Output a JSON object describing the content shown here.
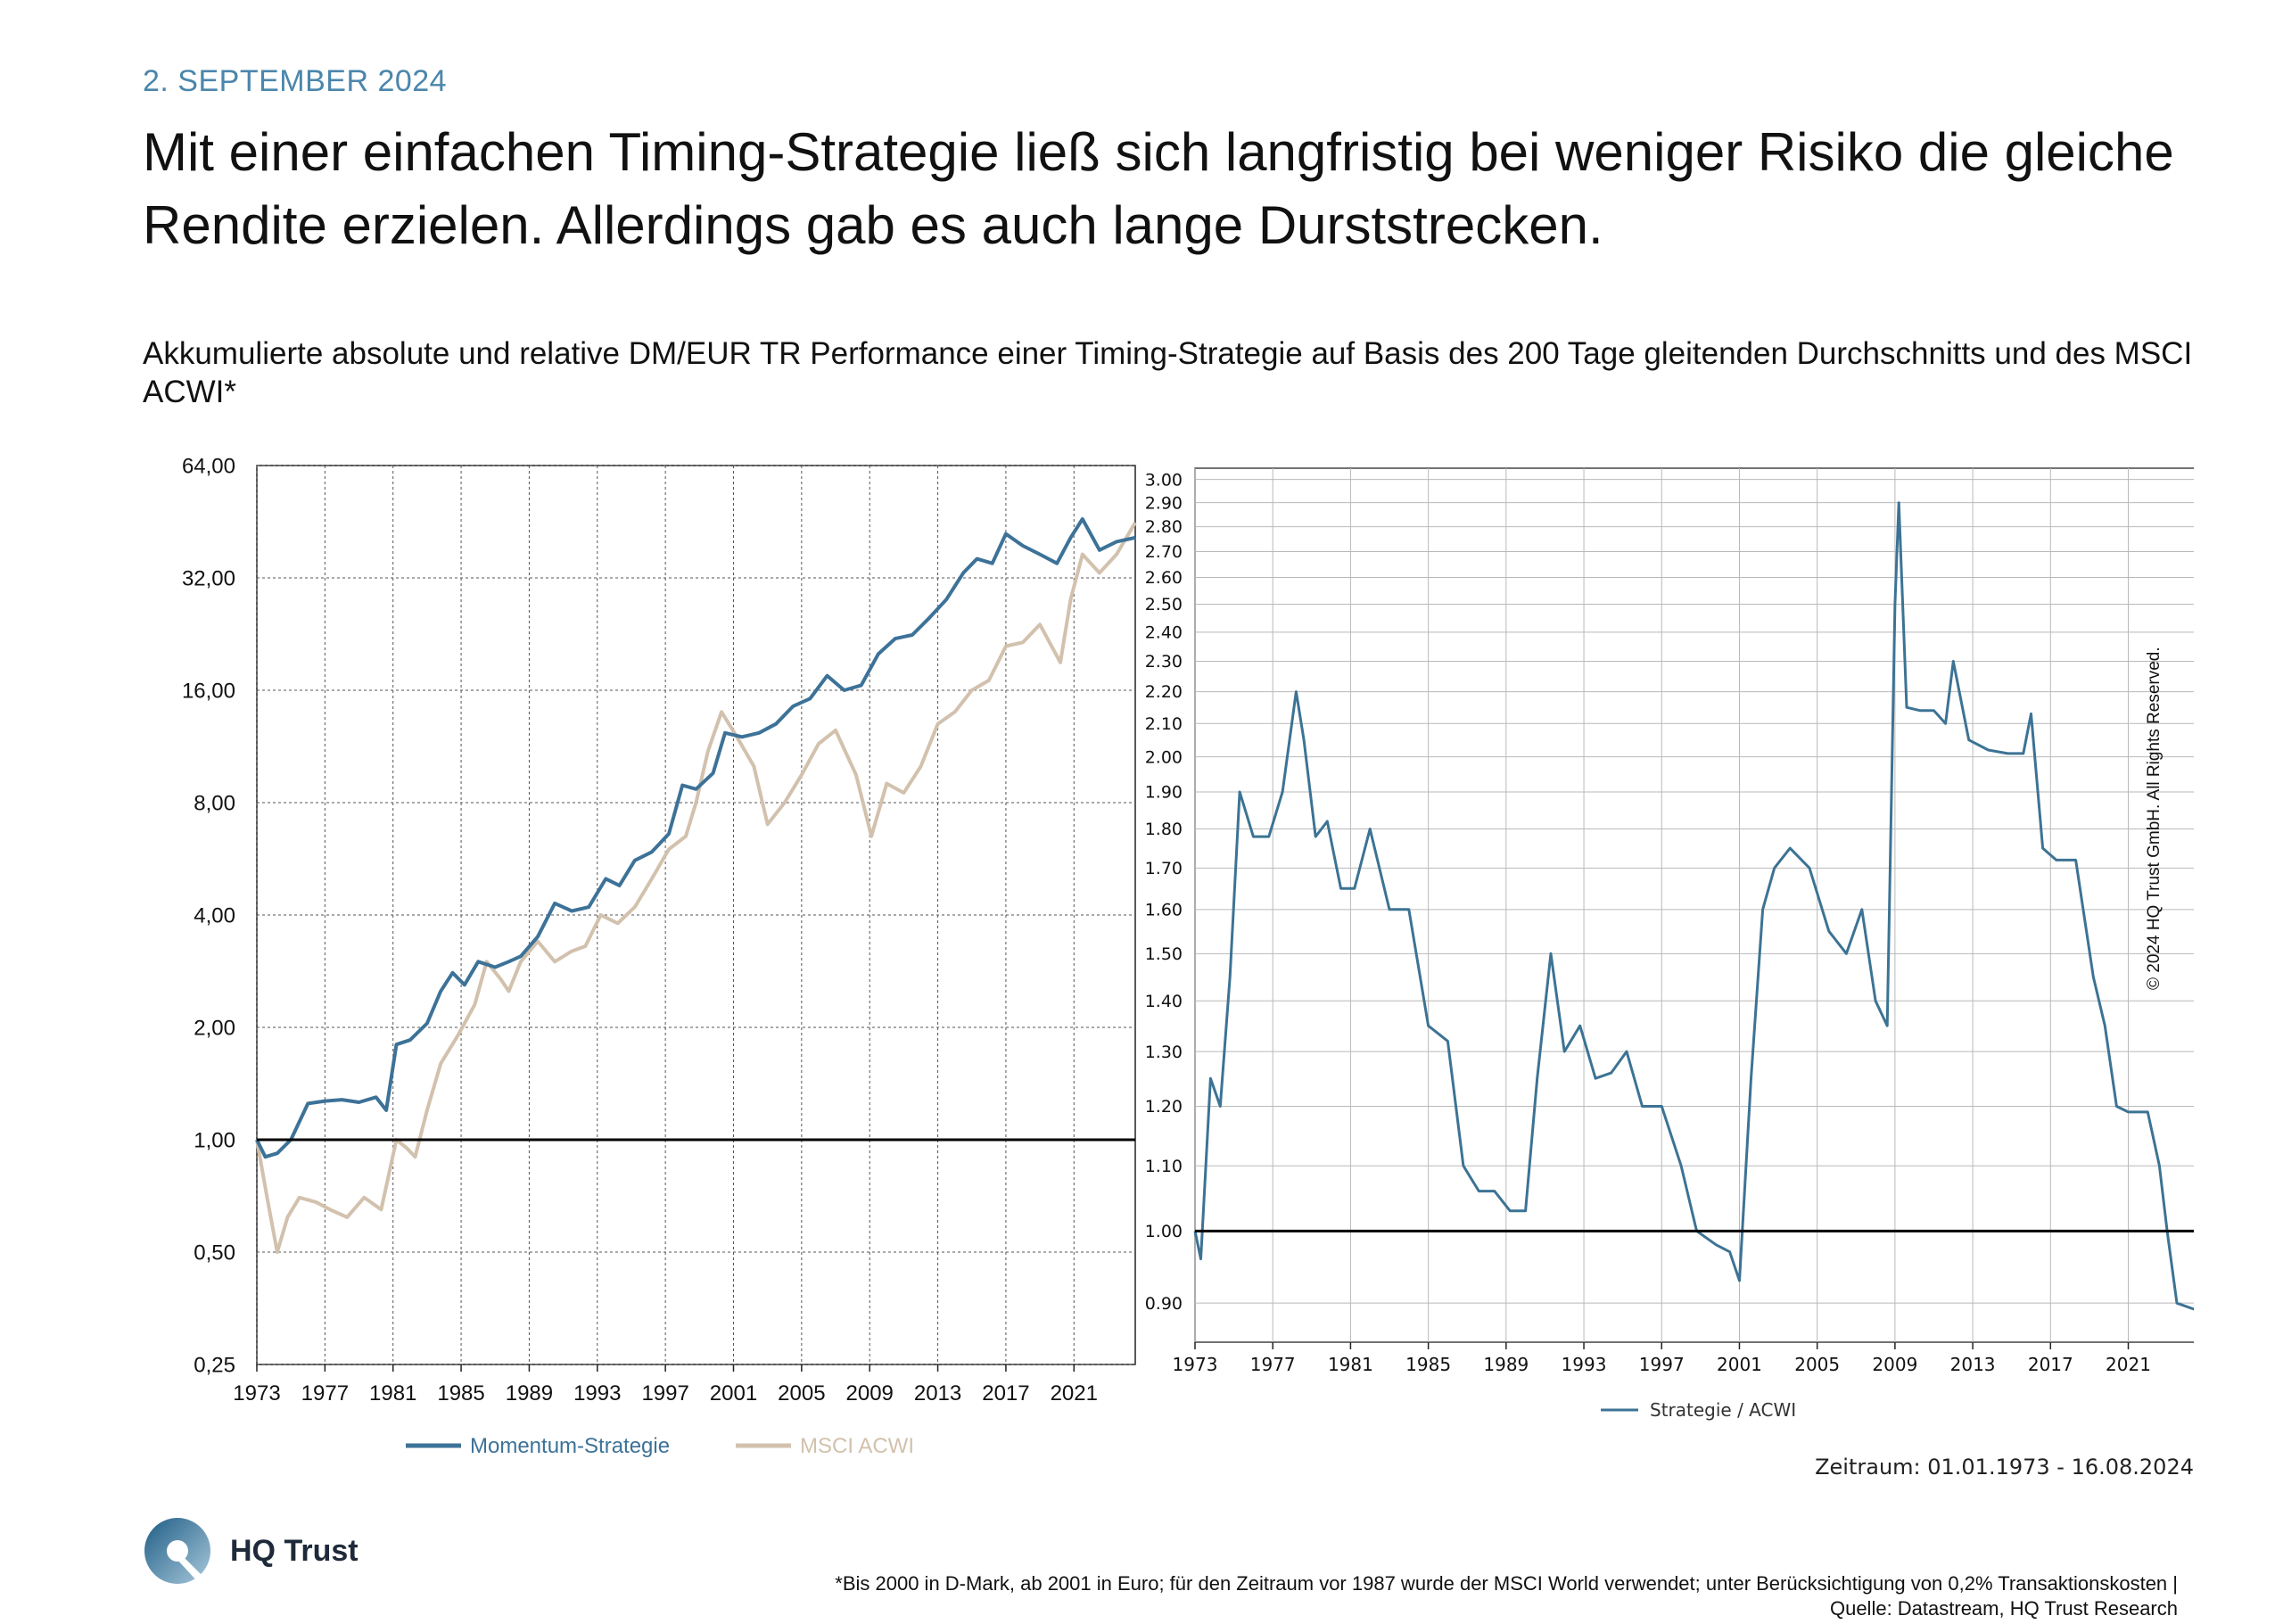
{
  "header": {
    "date": "2. SEPTEMBER 2024",
    "headline": "Mit einer einfachen Timing-Strategie ließ sich langfristig bei weniger Risiko die gleiche Rendite erzielen. Allerdings gab es auch lange Durststrecken.",
    "subtitle": "Akkumulierte absolute und relative DM/EUR TR Performance einer Timing-Strategie auf Basis des 200 Tage gleitenden Durchschnitts und des MSCI ACWI*"
  },
  "colors": {
    "accent": "#4b86ab",
    "strategy": "#3d7298",
    "msci": "#d2c1ad",
    "ratio": "#3c7394",
    "grid": "#7a7a7a",
    "text": "#111111"
  },
  "chart_data": [
    {
      "type": "line",
      "yscale": "log",
      "ylim": [
        0.25,
        64
      ],
      "xlim": [
        1973,
        2024.6
      ],
      "yticks": [
        "0,25",
        "0,50",
        "1,00",
        "2,00",
        "4,00",
        "8,00",
        "16,00",
        "32,00",
        "64,00"
      ],
      "ytick_values": [
        0.25,
        0.5,
        1,
        2,
        4,
        8,
        16,
        32,
        64
      ],
      "xticks": [
        "1973",
        "1977",
        "1981",
        "1985",
        "1989",
        "1993",
        "1997",
        "2001",
        "2005",
        "2009",
        "2013",
        "2017",
        "2021"
      ],
      "xtick_values": [
        1973,
        1977,
        1981,
        1985,
        1989,
        1993,
        1997,
        2001,
        2005,
        2009,
        2013,
        2017,
        2021
      ],
      "reference_line": 1.0,
      "grid": true,
      "legend_position": "bottom",
      "series": [
        {
          "name": "Momentum-Strategie",
          "color": "#3d7298",
          "x": [
            1973,
            1973.5,
            1974.2,
            1975,
            1976,
            1977,
            1978,
            1979,
            1980,
            1980.6,
            1981.2,
            1982,
            1983,
            1983.8,
            1984.5,
            1985.2,
            1986,
            1987,
            1987.8,
            1988.5,
            1989.5,
            1990.5,
            1991.5,
            1992.5,
            1993.5,
            1994.3,
            1995.2,
            1996.2,
            1997.2,
            1998,
            1998.8,
            1999.8,
            2000.5,
            2001.5,
            2002.5,
            2003.5,
            2004.5,
            2005.5,
            2006.5,
            2007.5,
            2008.5,
            2009.5,
            2010.5,
            2011.5,
            2012.5,
            2013.5,
            2014.5,
            2015.3,
            2016.2,
            2017,
            2018,
            2019,
            2020,
            2020.8,
            2021.5,
            2022.5,
            2023.5,
            2024.6
          ],
          "y": [
            1.0,
            0.9,
            0.92,
            1.0,
            1.25,
            1.27,
            1.28,
            1.26,
            1.3,
            1.2,
            1.8,
            1.85,
            2.05,
            2.5,
            2.8,
            2.6,
            3.0,
            2.9,
            3.0,
            3.1,
            3.5,
            4.3,
            4.1,
            4.2,
            5.0,
            4.8,
            5.6,
            5.9,
            6.6,
            8.9,
            8.7,
            9.6,
            12.3,
            12.0,
            12.3,
            13.0,
            14.5,
            15.2,
            17.5,
            16.0,
            16.5,
            20.0,
            22.0,
            22.5,
            25.0,
            28.0,
            33.0,
            36.0,
            35.0,
            42.0,
            39.0,
            37.0,
            35.0,
            41.0,
            46.0,
            38.0,
            40.0,
            41.0
          ]
        },
        {
          "name": "MSCI ACWI",
          "color": "#d2c1ad",
          "x": [
            1973,
            1973.6,
            1974.2,
            1974.8,
            1975.5,
            1976.5,
            1977.3,
            1978.3,
            1979.3,
            1980.3,
            1981.2,
            1981.8,
            1982.3,
            1983,
            1983.8,
            1984.8,
            1985.8,
            1986.5,
            1987.3,
            1987.8,
            1988.5,
            1989.5,
            1990.5,
            1991.5,
            1992.3,
            1993.2,
            1994.2,
            1995.2,
            1996.2,
            1997.2,
            1998.2,
            1998.8,
            1999.5,
            2000.3,
            2001.2,
            2002.2,
            2003,
            2004,
            2005,
            2006,
            2007,
            2008.2,
            2009.1,
            2010,
            2011,
            2012,
            2013,
            2014,
            2015,
            2016,
            2017,
            2018,
            2019,
            2020.2,
            2020.8,
            2021.5,
            2022.5,
            2023.5,
            2024.6
          ],
          "y": [
            1.0,
            0.7,
            0.5,
            0.62,
            0.7,
            0.68,
            0.65,
            0.62,
            0.7,
            0.65,
            1.0,
            0.95,
            0.9,
            1.2,
            1.6,
            1.9,
            2.3,
            3.0,
            2.7,
            2.5,
            3.0,
            3.4,
            3.0,
            3.2,
            3.3,
            4.0,
            3.8,
            4.2,
            5.0,
            6.0,
            6.5,
            8.0,
            11.0,
            14.0,
            12.0,
            10.0,
            7.0,
            8.0,
            9.5,
            11.5,
            12.5,
            9.5,
            6.5,
            9.0,
            8.5,
            10.0,
            13.0,
            14.0,
            16.0,
            17.0,
            21.0,
            21.5,
            24.0,
            19.0,
            28.0,
            37.0,
            33.0,
            37.0,
            45.0
          ]
        }
      ]
    },
    {
      "type": "line",
      "yscale": "log",
      "ylim": [
        0.85,
        3.05
      ],
      "xlim": [
        1973,
        2024.6
      ],
      "yticks": [
        "0.90",
        "1.00",
        "1.10",
        "1.20",
        "1.30",
        "1.40",
        "1.50",
        "1.60",
        "1.70",
        "1.80",
        "1.90",
        "2.00",
        "2.10",
        "2.20",
        "2.30",
        "2.40",
        "2.50",
        "2.60",
        "2.70",
        "2.80",
        "2.90",
        "3.00"
      ],
      "ytick_values": [
        0.9,
        1.0,
        1.1,
        1.2,
        1.3,
        1.4,
        1.5,
        1.6,
        1.7,
        1.8,
        1.9,
        2.0,
        2.1,
        2.2,
        2.3,
        2.4,
        2.5,
        2.6,
        2.7,
        2.8,
        2.9,
        3.0
      ],
      "xticks": [
        "1973",
        "1977",
        "1981",
        "1985",
        "1989",
        "1993",
        "1997",
        "2001",
        "2005",
        "2009",
        "2013",
        "2017",
        "2021"
      ],
      "xtick_values": [
        1973,
        1977,
        1981,
        1985,
        1989,
        1993,
        1997,
        2001,
        2005,
        2009,
        2013,
        2017,
        2021
      ],
      "reference_line": 1.0,
      "grid": true,
      "legend_position": "bottom",
      "period_note": "Zeitraum: 01.01.1973 - 16.08.2024",
      "series": [
        {
          "name": "Strategie / ACWI",
          "color": "#3c7394",
          "x": [
            1973,
            1973.3,
            1973.8,
            1974.3,
            1974.8,
            1975.3,
            1976,
            1976.8,
            1977.5,
            1978.2,
            1978.6,
            1979.2,
            1979.8,
            1980.5,
            1981.2,
            1982,
            1983,
            1984,
            1985,
            1986,
            1986.8,
            1987.6,
            1988.4,
            1989.2,
            1990,
            1990.6,
            1991.3,
            1992,
            1992.8,
            1993.6,
            1994.4,
            1995.2,
            1996,
            1997,
            1998,
            1998.8,
            1999.8,
            2000.5,
            2001,
            2001.6,
            2002.2,
            2002.8,
            2003.6,
            2004.6,
            2005.6,
            2006.5,
            2007.3,
            2008,
            2008.6,
            2009,
            2009.2,
            2009.6,
            2010.3,
            2011,
            2011.6,
            2012,
            2012.8,
            2013.8,
            2014.8,
            2015.6,
            2016,
            2016.6,
            2017.3,
            2018.3,
            2019.2,
            2019.8,
            2020.4,
            2021,
            2022,
            2022.6,
            2023,
            2023.5,
            2024.6
          ],
          "y": [
            1.0,
            0.96,
            1.25,
            1.2,
            1.45,
            1.9,
            1.78,
            1.78,
            1.9,
            2.2,
            2.05,
            1.78,
            1.82,
            1.65,
            1.65,
            1.8,
            1.6,
            1.6,
            1.35,
            1.32,
            1.1,
            1.06,
            1.06,
            1.03,
            1.03,
            1.25,
            1.5,
            1.3,
            1.35,
            1.25,
            1.26,
            1.3,
            1.2,
            1.2,
            1.1,
            1.0,
            0.98,
            0.97,
            0.93,
            1.25,
            1.6,
            1.7,
            1.75,
            1.7,
            1.55,
            1.5,
            1.6,
            1.4,
            1.35,
            2.5,
            2.9,
            2.15,
            2.14,
            2.14,
            2.1,
            2.3,
            2.05,
            2.02,
            2.01,
            2.01,
            2.13,
            1.75,
            1.72,
            1.72,
            1.45,
            1.35,
            1.2,
            1.19,
            1.19,
            1.1,
            1.0,
            0.9,
            0.89
          ]
        }
      ]
    }
  ],
  "copyright": "© 2024 HQ Trust GmbH. All Rights Reserved.",
  "brand": {
    "name": "HQ Trust"
  },
  "footnote": {
    "line1": "*Bis 2000 in D-Mark, ab 2001 in Euro; für den Zeitraum vor 1987 wurde der MSCI World verwendet; unter Berücksichtigung von 0,2% Transaktionskosten |",
    "line2": "Quelle: Datastream, HQ Trust Research"
  }
}
